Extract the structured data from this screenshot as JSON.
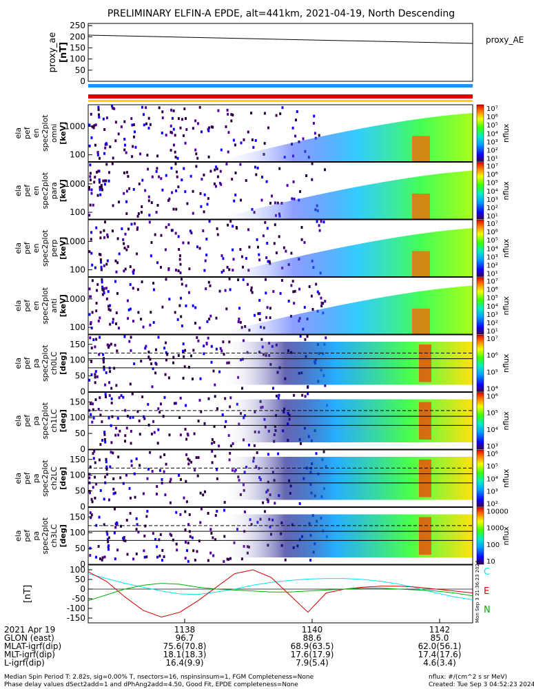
{
  "title": "PRELIMINARY ELFIN-A EPDE, alt=441km, 2021-04-19, North Descending",
  "proxy_panel": {
    "ylabel": [
      "proxy_ae",
      "[nT]"
    ],
    "yticks": [
      "250",
      "200",
      "150",
      "100",
      "50",
      "0"
    ],
    "legend": "proxy_AE"
  },
  "spectral_panels": [
    {
      "ylabel": [
        "ela",
        "pef",
        "en",
        "spec2plot",
        "omni",
        "[keV]"
      ],
      "yticks": [
        "1000",
        "100"
      ],
      "zlabel": "nflux",
      "zticks": [
        "10⁷",
        "10⁶",
        "10⁵",
        "10⁴",
        "10³",
        "10²",
        "10¹"
      ]
    },
    {
      "ylabel": [
        "ela",
        "pef",
        "en",
        "spec2plot",
        "para",
        "[keV]"
      ],
      "yticks": [
        "1000",
        "100"
      ],
      "zlabel": "nflux",
      "zticks": [
        "10⁷",
        "10⁶",
        "10⁵",
        "10⁴",
        "10³",
        "10²",
        "10¹"
      ]
    },
    {
      "ylabel": [
        "ela",
        "pef",
        "en",
        "spec2plot",
        "perp",
        "[keV]"
      ],
      "yticks": [
        "1000",
        "100"
      ],
      "zlabel": "nflux",
      "zticks": [
        "10⁷",
        "10⁶",
        "10⁵",
        "10⁴",
        "10³",
        "10²",
        "10¹"
      ]
    },
    {
      "ylabel": [
        "ela",
        "pef",
        "en",
        "spec2plot",
        "anti",
        "[keV]"
      ],
      "yticks": [
        "1000",
        "100"
      ],
      "zlabel": "nflux",
      "zticks": [
        "10⁷",
        "10⁶",
        "10⁵",
        "10⁴",
        "10³",
        "10²",
        "10¹"
      ]
    }
  ],
  "pitch_panels": [
    {
      "ylabel": [
        "ela",
        "pef",
        "pa",
        "spec2plot",
        "ch0LC",
        "[deg]"
      ],
      "yticks": [
        "150",
        "100",
        "50",
        "0"
      ],
      "zlabel": "nflux",
      "zticks": [
        "10⁷",
        "10⁶",
        "10⁵",
        "10⁴"
      ]
    },
    {
      "ylabel": [
        "ela",
        "pef",
        "pa",
        "spec2plot",
        "ch1LC",
        "[deg]"
      ],
      "yticks": [
        "150",
        "100",
        "50",
        "0"
      ],
      "zlabel": "nflux",
      "zticks": [
        "10⁶",
        "10⁵",
        "10⁴",
        "10³"
      ]
    },
    {
      "ylabel": [
        "ela",
        "pef",
        "pa",
        "spec2plot",
        "ch2LC",
        "[deg]"
      ],
      "yticks": [
        "150",
        "100",
        "50",
        "0"
      ],
      "zlabel": "nflux",
      "zticks": [
        "10⁶",
        "10⁵",
        "10⁴",
        "10³",
        "10²"
      ]
    },
    {
      "ylabel": [
        "ela",
        "pef",
        "pa",
        "spec2plot",
        "ch3LC",
        "[deg]"
      ],
      "yticks": [
        "150",
        "100",
        "50",
        "0"
      ],
      "zlabel": "nflux",
      "zticks": [
        "10000",
        "1000",
        "100",
        "10"
      ]
    }
  ],
  "field_panel": {
    "ylabel": "[nT]",
    "yticks": [
      "100",
      "50",
      "0",
      "-50",
      "-100",
      "-150"
    ],
    "legend": [
      "C",
      "E",
      "N"
    ],
    "legend_colors": [
      "#00e5ee",
      "#d00000",
      "#00b000"
    ],
    "side_text": "Mon Sep  3 21:36:23 2024"
  },
  "footer": {
    "rows": [
      {
        "label": "2021 Apr 19",
        "values": [
          "1138",
          "1140",
          "1142"
        ]
      },
      {
        "label": "GLON (east)",
        "values": [
          "96.7",
          "88.6",
          "85.0"
        ]
      },
      {
        "label": "MLAT-igrf(dip)",
        "values": [
          "75.6(70.8)",
          "68.9(63.5)",
          "62.0(56.1)"
        ]
      },
      {
        "label": "MLT-igrf(dip)",
        "values": [
          "18.1(18.3)",
          "17.6(17.9)",
          "17.4(17.6)"
        ]
      },
      {
        "label": "L-igrf(dip)",
        "values": [
          "16.4(9.9)",
          "7.9(5.4)",
          "4.6(3.4)"
        ]
      }
    ],
    "notes_left": [
      "Median Spin Period T: 2.82s, sig=0.00% T, nsectors=16, nspinsinsum=1, FGM Completeness=None",
      "Phase delay values dSect2add=1 and dPhAng2add=4.50, Good Fit, EPDE completeness=None"
    ],
    "notes_right": [
      "nflux: #/(cm^2 s sr MeV)",
      "Created: Tue Sep  3 04:52:23 2024"
    ]
  },
  "chart_data": [
    {
      "type": "line",
      "name": "proxy_ae",
      "x": [
        "11:36",
        "11:43"
      ],
      "y": [
        205,
        170
      ],
      "ylim": [
        0,
        250
      ]
    },
    {
      "type": "heatmap",
      "name": "omni",
      "xrange": [
        "11:36",
        "11:43"
      ]
    },
    {
      "type": "heatmap",
      "name": "para",
      "xrange": [
        "11:36",
        "11:43"
      ]
    },
    {
      "type": "heatmap",
      "name": "perp",
      "xrange": [
        "11:36",
        "11:43"
      ]
    },
    {
      "type": "heatmap",
      "name": "anti",
      "xrange": [
        "11:36",
        "11:43"
      ]
    },
    {
      "type": "heatmap",
      "name": "ch0LC",
      "yrange": [
        0,
        180
      ]
    },
    {
      "type": "heatmap",
      "name": "ch1LC",
      "yrange": [
        0,
        180
      ]
    },
    {
      "type": "heatmap",
      "name": "ch2LC",
      "yrange": [
        0,
        180
      ]
    },
    {
      "type": "heatmap",
      "name": "ch3LC",
      "yrange": [
        0,
        180
      ]
    },
    {
      "type": "line",
      "name": "field",
      "ylim": [
        -175,
        125
      ],
      "series": [
        {
          "name": "C",
          "values": [
            80,
            55,
            30,
            10,
            -10,
            -25,
            -28,
            -15,
            0,
            20,
            35,
            45,
            52,
            55,
            55,
            50,
            40,
            25,
            5,
            -20,
            -40,
            -55
          ]
        },
        {
          "name": "E",
          "values": [
            90,
            40,
            -40,
            -110,
            -145,
            -120,
            -60,
            10,
            80,
            100,
            60,
            -30,
            -120,
            -20,
            0,
            10,
            15,
            15,
            10,
            0,
            -10,
            -20
          ]
        },
        {
          "name": "N",
          "values": [
            -60,
            -30,
            0,
            20,
            30,
            25,
            10,
            0,
            -5,
            -10,
            -15,
            -15,
            -10,
            -5,
            0,
            5,
            5,
            0,
            -5,
            -10,
            -20,
            -35
          ]
        }
      ]
    }
  ]
}
